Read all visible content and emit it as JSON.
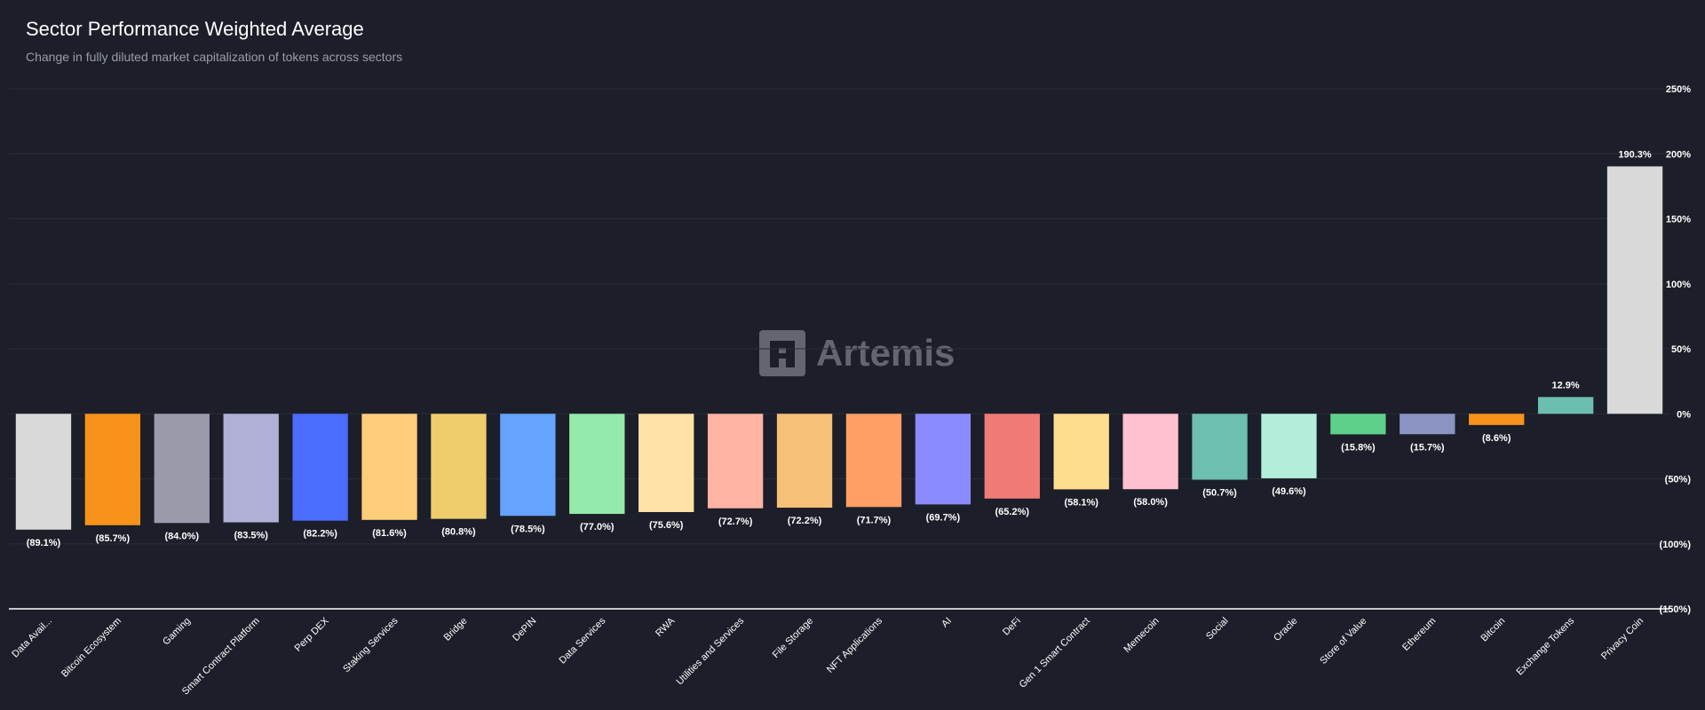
{
  "chart_data": {
    "type": "bar",
    "title": "Sector Performance Weighted Average",
    "subtitle": "Change in fully diluted market capitalization of tokens across sectors",
    "watermark": "Artemis",
    "ylim": [
      -150,
      250
    ],
    "yticks": [
      250,
      200,
      150,
      100,
      50,
      0,
      -50,
      -100,
      -150
    ],
    "ytick_labels": [
      "250%",
      "200%",
      "150%",
      "100%",
      "50%",
      "0%",
      "(50%)",
      "(100%)",
      "(150%)"
    ],
    "categories": [
      "Data Avail...",
      "Bitcoin Ecosystem",
      "Gaming",
      "Smart Contract Platform",
      "Perp DEX",
      "Staking Services",
      "Bridge",
      "DePIN",
      "Data Services",
      "RWA",
      "Utilities and Services",
      "File Storage",
      "NFT Applications",
      "AI",
      "DeFi",
      "Gen 1 Smart Contract",
      "Memecoin",
      "Social",
      "Oracle",
      "Store of Value",
      "Ethereum",
      "Bitcoin",
      "Exchange Tokens",
      "Privacy Coin"
    ],
    "values": [
      -89.1,
      -85.7,
      -84.0,
      -83.5,
      -82.2,
      -81.6,
      -80.8,
      -78.5,
      -77.0,
      -75.6,
      -72.7,
      -72.2,
      -71.7,
      -69.7,
      -65.2,
      -58.1,
      -58.0,
      -50.7,
      -49.6,
      -15.8,
      -15.7,
      -8.6,
      12.9,
      190.3
    ],
    "value_labels": [
      "(89.1%)",
      "(85.7%)",
      "(84.0%)",
      "(83.5%)",
      "(82.2%)",
      "(81.6%)",
      "(80.8%)",
      "(78.5%)",
      "(77.0%)",
      "(75.6%)",
      "(72.7%)",
      "(72.2%)",
      "(71.7%)",
      "(69.7%)",
      "(65.2%)",
      "(58.1%)",
      "(58.0%)",
      "(50.7%)",
      "(49.6%)",
      "(15.8%)",
      "(15.7%)",
      "(8.6%)",
      "12.9%",
      "190.3%"
    ],
    "colors": [
      "#d9d9d9",
      "#f7931a",
      "#9a9aab",
      "#b0b0d6",
      "#4a6cff",
      "#fdcd79",
      "#efcd6d",
      "#64a3ff",
      "#93eaaa",
      "#ffe3a6",
      "#ffb3a3",
      "#f7c077",
      "#ff9f66",
      "#8b8bff",
      "#ef7a76",
      "#ffdd8f",
      "#ffc0cf",
      "#6dbfb0",
      "#b3eedb",
      "#5ed08a",
      "#8a93c2",
      "#f7931a",
      "#6cbfb0",
      "#d9d9d9"
    ],
    "xlabel": "",
    "ylabel": "",
    "grid": true
  }
}
